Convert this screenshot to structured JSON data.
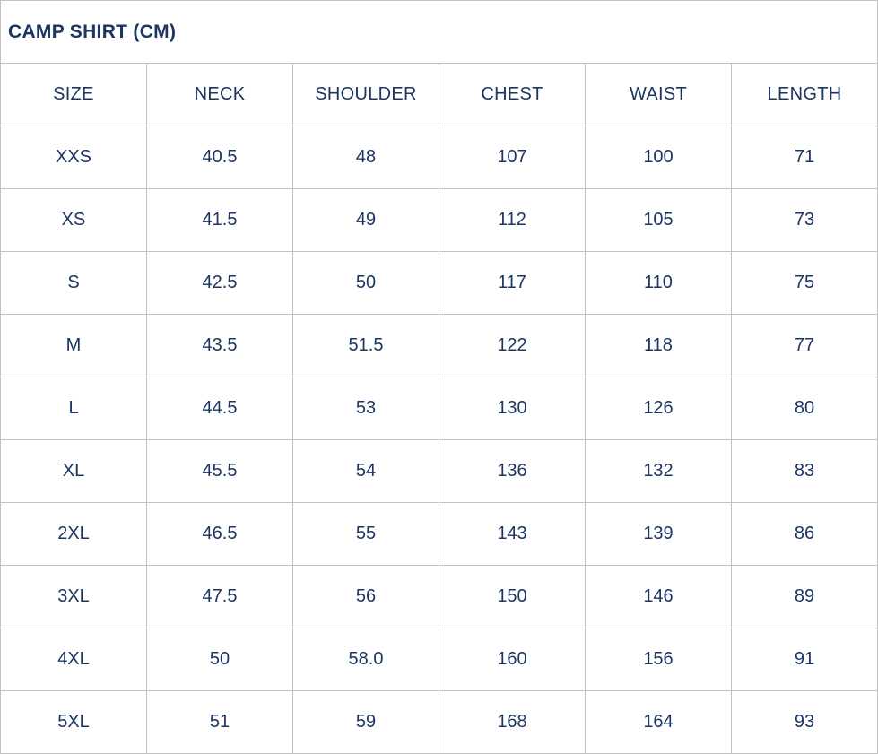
{
  "title": "CAMP SHIRT (CM)",
  "colors": {
    "text": "#1c3563",
    "border": "#c2c2c2",
    "background": "#ffffff"
  },
  "table": {
    "headers": [
      "SIZE",
      "NECK",
      "SHOULDER",
      "CHEST",
      "WAIST",
      "LENGTH"
    ],
    "rows": [
      {
        "size": "XXS",
        "neck": "40.5",
        "shoulder": "48",
        "chest": "107",
        "waist": "100",
        "length": "71"
      },
      {
        "size": "XS",
        "neck": "41.5",
        "shoulder": "49",
        "chest": "112",
        "waist": "105",
        "length": "73"
      },
      {
        "size": "S",
        "neck": "42.5",
        "shoulder": "50",
        "chest": "117",
        "waist": "110",
        "length": "75"
      },
      {
        "size": "M",
        "neck": "43.5",
        "shoulder": "51.5",
        "chest": "122",
        "waist": "118",
        "length": "77"
      },
      {
        "size": "L",
        "neck": "44.5",
        "shoulder": "53",
        "chest": "130",
        "waist": "126",
        "length": "80"
      },
      {
        "size": "XL",
        "neck": "45.5",
        "shoulder": "54",
        "chest": "136",
        "waist": "132",
        "length": "83"
      },
      {
        "size": "2XL",
        "neck": "46.5",
        "shoulder": "55",
        "chest": "143",
        "waist": "139",
        "length": "86"
      },
      {
        "size": "3XL",
        "neck": "47.5",
        "shoulder": "56",
        "chest": "150",
        "waist": "146",
        "length": "89"
      },
      {
        "size": "4XL",
        "neck": "50",
        "shoulder": "58.0",
        "chest": "160",
        "waist": "156",
        "length": "91"
      },
      {
        "size": "5XL",
        "neck": "51",
        "shoulder": "59",
        "chest": "168",
        "waist": "164",
        "length": "93"
      }
    ]
  }
}
